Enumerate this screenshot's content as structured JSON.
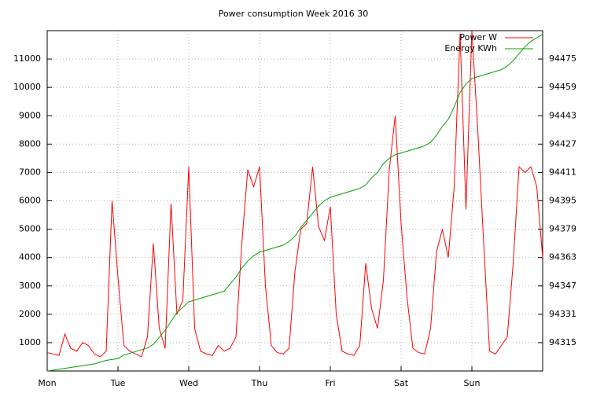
{
  "chart_data": {
    "type": "line",
    "title": "Power consumption Week 2016 30",
    "x": [
      0,
      2,
      4,
      6,
      8,
      10,
      12,
      14,
      16,
      18,
      20,
      22,
      24,
      26,
      28,
      30,
      32,
      34,
      36,
      38,
      40,
      42,
      44,
      46,
      48,
      50,
      52,
      54,
      56,
      58,
      60,
      62,
      64,
      66,
      68,
      70,
      72,
      74,
      76,
      78,
      80,
      82,
      84,
      86,
      88,
      90,
      92,
      94,
      96,
      98,
      100,
      102,
      104,
      106,
      108,
      110,
      112,
      114,
      116,
      118,
      120,
      122,
      124,
      126,
      128,
      130,
      132,
      134,
      136,
      138,
      140,
      142,
      144,
      146,
      148,
      150,
      152,
      154,
      156,
      158,
      160,
      162,
      164,
      166,
      168
    ],
    "series": [
      {
        "name": "Power W",
        "color": "#ff0000",
        "values": [
          650,
          600,
          550,
          1300,
          800,
          700,
          1000,
          900,
          600,
          500,
          700,
          6000,
          3300,
          900,
          700,
          600,
          500,
          1200,
          4500,
          1500,
          800,
          5900,
          2000,
          2500,
          7200,
          1500,
          700,
          600,
          550,
          900,
          700,
          800,
          1200,
          4500,
          7100,
          6500,
          7200,
          3000,
          900,
          650,
          600,
          800,
          3500,
          5000,
          5200,
          7200,
          5100,
          4600,
          5800,
          2000,
          700,
          600,
          550,
          900,
          3800,
          2200,
          1500,
          3200,
          7100,
          9000,
          5200,
          2600,
          800,
          650,
          600,
          1500,
          4200,
          5000,
          4000,
          6500,
          11900,
          5700,
          12000,
          8500,
          4500,
          700,
          600,
          900,
          1200,
          3800,
          7200,
          7000,
          7200,
          6500,
          4000
        ]
      },
      {
        "name": "Energy KWh",
        "color": "#00a000",
        "axis": "y2",
        "values": [
          94299,
          94299.5,
          94300,
          94300.5,
          94301,
          94301.5,
          94302,
          94302.5,
          94303,
          94304,
          94305,
          94305.5,
          94306,
          94308,
          94309,
          94310,
          94311,
          94312,
          94314,
          94318,
          94322,
          94327,
          94332,
          94335,
          94338,
          94339,
          94340,
          94341,
          94342,
          94343,
          94344,
          94348,
          94352,
          94357,
          94361,
          94364,
          94366,
          94367,
          94368,
          94369,
          94370,
          94372,
          94375,
          94380,
          94384,
          94388,
          94392,
          94395,
          94397,
          94398,
          94399,
          94400,
          94401,
          94402,
          94404,
          94408,
          94411,
          94416,
          94419,
          94421,
          94422,
          94423,
          94424,
          94425,
          94426,
          94428,
          94432,
          94437,
          94441,
          94448,
          94456,
          94461,
          94464,
          94465,
          94466,
          94467,
          94468,
          94469,
          94471,
          94474,
          94478,
          94482,
          94485,
          94487,
          94489
        ]
      }
    ],
    "xlim": [
      0,
      168
    ],
    "xticks": [
      {
        "value": 0,
        "label": "Mon"
      },
      {
        "value": 24,
        "label": "Tue"
      },
      {
        "value": 48,
        "label": "Wed"
      },
      {
        "value": 72,
        "label": "Thu"
      },
      {
        "value": 96,
        "label": "Fri"
      },
      {
        "value": 120,
        "label": "Sat"
      },
      {
        "value": 144,
        "label": "Sun"
      }
    ],
    "ylim": [
      0,
      12000
    ],
    "yticks": [
      1000,
      2000,
      3000,
      4000,
      5000,
      6000,
      7000,
      8000,
      9000,
      10000,
      11000
    ],
    "y2lim": [
      94299,
      94491
    ],
    "y2ticks": [
      94315,
      94331,
      94347,
      94363,
      94379,
      94395,
      94411,
      94427,
      94443,
      94459,
      94475
    ],
    "grid": true,
    "legend": "top-right"
  }
}
